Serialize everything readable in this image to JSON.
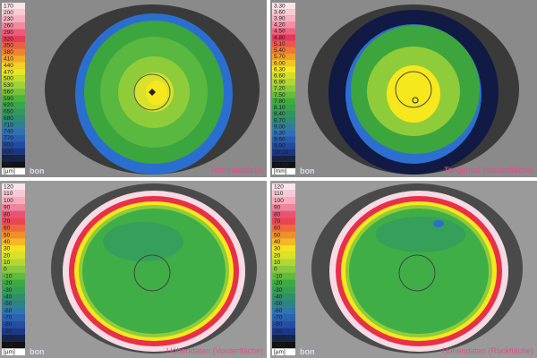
{
  "panels": [
    {
      "title": "Hornhautdicke",
      "logo": "bon",
      "unit": "[µm]",
      "scale": [
        "170",
        "200",
        "230",
        "260",
        "290",
        "320",
        "350",
        "380",
        "410",
        "440",
        "470",
        "500",
        "530",
        "560",
        "590",
        "620",
        "650",
        "680",
        "710",
        "740",
        "770",
        "800",
        "830",
        "860",
        "890"
      ]
    },
    {
      "title": "Tangential (Vorderfläche)",
      "logo": "bon",
      "unit": "[mm]",
      "scale": [
        "3.30",
        "3.60",
        "3.90",
        "4.20",
        "4.50",
        "4.80",
        "5.10",
        "5.40",
        "5.70",
        "6.00",
        "6.30",
        "6.60",
        "6.90",
        "7.20",
        "7.50",
        "7.80",
        "8.10",
        "8.40",
        "8.70",
        "9.00",
        "9.30",
        "9.60",
        "9.90",
        "10.20",
        "10.50",
        "10.80"
      ]
    },
    {
      "title": "Höhendaten (Vorderfläche)",
      "logo": "bon",
      "unit": "[µm]",
      "scale": [
        "120",
        "110",
        "100",
        "90",
        "80",
        "70",
        "60",
        "50",
        "40",
        "30",
        "20",
        "10",
        "0",
        "-10",
        "-20",
        "-30",
        "-40",
        "-50",
        "-60",
        "-70",
        "-80",
        "-90",
        "-100",
        "-110"
      ]
    },
    {
      "title": "Höhendaten (Rückfläche)",
      "logo": "bon",
      "unit": "[µm]",
      "scale": [
        "120",
        "110",
        "100",
        "90",
        "80",
        "70",
        "60",
        "50",
        "40",
        "30",
        "20",
        "10",
        "0",
        "-10",
        "-20",
        "-30",
        "-40",
        "-50",
        "-60",
        "-70",
        "-80",
        "-90",
        "-100",
        "-110"
      ]
    }
  ]
}
